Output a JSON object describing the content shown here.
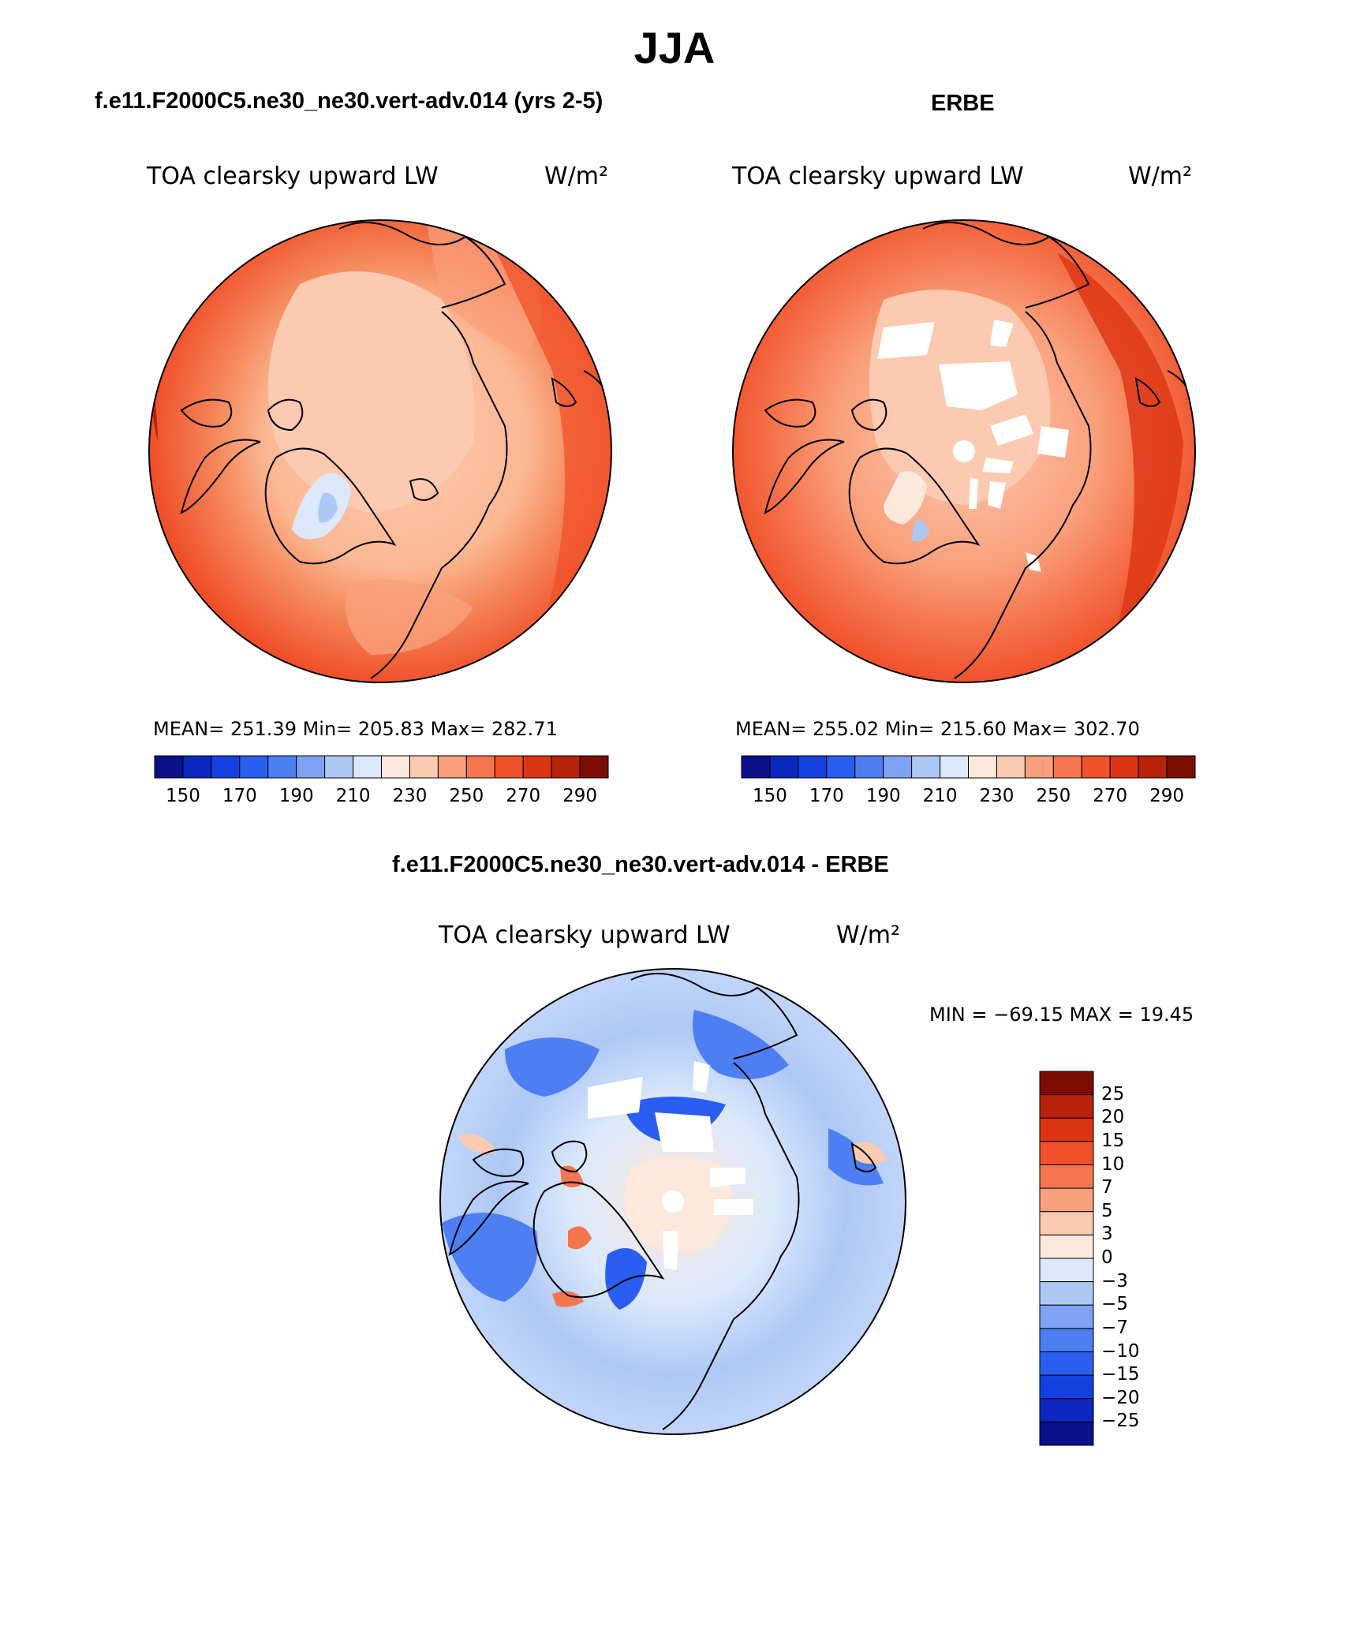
{
  "figure": {
    "title": "JJA"
  },
  "panels": {
    "model": {
      "title": "f.e11.F2000C5.ne30_ne30.vert-adv.014 (yrs 2-5)",
      "variable": "TOA clearsky upward LW",
      "units": "W/m²",
      "stats": "MEAN= 251.39   Min= 205.83   Max= 282.71"
    },
    "obs": {
      "title": "ERBE",
      "variable": "TOA clearsky upward LW",
      "units": "W/m²",
      "stats": "MEAN= 255.02   Min= 215.60   Max= 302.70"
    },
    "diff": {
      "title": "f.e11.F2000C5.ne30_ne30.vert-adv.014 - ERBE",
      "variable": "TOA clearsky upward LW",
      "units": "W/m²",
      "stats": "MIN = −69.15 MAX =  19.45"
    }
  },
  "colorbars": {
    "absolute": {
      "colors": [
        "#0a0f8a",
        "#0a27bf",
        "#1540e0",
        "#2a5ef0",
        "#4e7ff2",
        "#7ea3f4",
        "#aec8f6",
        "#dbe9fb",
        "#fde8dc",
        "#fccab0",
        "#f9a07c",
        "#f5764e",
        "#f0502a",
        "#dd3513",
        "#b82208",
        "#7d0c02"
      ],
      "tick_labels": [
        "150",
        "170",
        "190",
        "210",
        "230",
        "250",
        "270",
        "290"
      ]
    },
    "difference": {
      "colors": [
        "#0a0f8a",
        "#0a27bf",
        "#1540e0",
        "#2a5ef0",
        "#4e7ff2",
        "#7ea3f4",
        "#aec8f6",
        "#dbe9fb",
        "#fde8dc",
        "#fccab0",
        "#f9a07c",
        "#f5764e",
        "#f0502a",
        "#dd3513",
        "#b82208",
        "#7d0c02"
      ],
      "tick_labels": [
        "25",
        "20",
        "15",
        "10",
        "7",
        "5",
        "3",
        "0",
        "−3",
        "−5",
        "−7",
        "−10",
        "−15",
        "−20",
        "−25"
      ]
    }
  }
}
